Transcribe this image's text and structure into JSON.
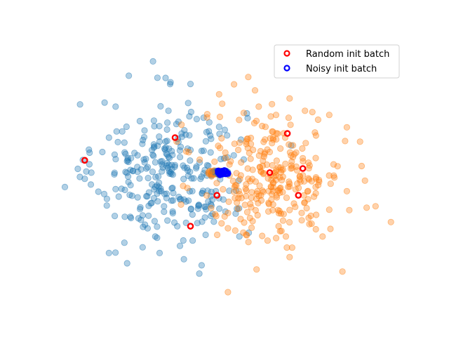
{
  "chart_data": {
    "type": "scatter",
    "title": "",
    "xlabel": "",
    "ylabel": "",
    "axes_visible": false,
    "grid": false,
    "xlim": [
      -3.6,
      4.3
    ],
    "ylim": [
      -3.0,
      3.2
    ],
    "legend": {
      "placement": "upper-right",
      "entries": [
        {
          "label": "Random init batch",
          "marker": "hollow-circle",
          "color": "#ff0000"
        },
        {
          "label": "Noisy init batch",
          "marker": "hollow-circle",
          "color": "#0000ff"
        }
      ]
    },
    "series": [
      {
        "role": "cluster-left",
        "color": "#1f77b4",
        "alpha": 0.35,
        "center": [
          -1.0,
          0.0
        ],
        "std": 0.85,
        "count": 300,
        "points": [
          [
            -1.4,
            2.7
          ],
          [
            -1.95,
            2.35
          ],
          [
            -1.3,
            2.3
          ],
          [
            -0.55,
            2.15
          ],
          [
            -2.5,
            1.7
          ],
          [
            -2.25,
            1.6
          ],
          [
            -1.05,
            1.5
          ],
          [
            -1.7,
            1.25
          ],
          [
            -2.1,
            1.0
          ],
          [
            -2.4,
            0.85
          ],
          [
            -0.75,
            0.95
          ],
          [
            -0.1,
            0.9
          ],
          [
            -1.25,
            0.75
          ],
          [
            -0.55,
            0.55
          ],
          [
            -1.9,
            0.35
          ],
          [
            -2.55,
            0.5
          ],
          [
            -1.55,
            0.1
          ],
          [
            -2.8,
            0.0
          ],
          [
            -2.95,
            -0.15
          ],
          [
            -0.95,
            -0.05
          ],
          [
            -0.3,
            -0.1
          ],
          [
            -1.35,
            -0.35
          ],
          [
            -2.25,
            -0.4
          ],
          [
            -1.75,
            -0.6
          ],
          [
            -0.65,
            -0.7
          ],
          [
            -2.45,
            -0.8
          ],
          [
            -1.15,
            -0.95
          ],
          [
            -0.05,
            -1.0
          ],
          [
            -1.9,
            -1.1
          ],
          [
            -0.85,
            -1.3
          ],
          [
            -1.35,
            -1.55
          ],
          [
            -2.05,
            -1.7
          ],
          [
            -0.5,
            -1.65
          ],
          [
            -2.4,
            -1.95
          ],
          [
            -1.25,
            -1.95
          ],
          [
            -0.7,
            -2.1
          ],
          [
            -0.35,
            -2.45
          ]
        ]
      },
      {
        "role": "cluster-right",
        "color": "#ff7f0e",
        "alpha": 0.35,
        "center": [
          1.3,
          -0.1
        ],
        "std": 0.8,
        "count": 300,
        "points": [
          [
            0.1,
            1.9
          ],
          [
            1.7,
            1.8
          ],
          [
            2.05,
            1.5
          ],
          [
            1.0,
            1.6
          ],
          [
            2.6,
            1.4
          ],
          [
            3.0,
            1.1
          ],
          [
            0.9,
            1.2
          ],
          [
            1.6,
            0.85
          ],
          [
            2.3,
            0.9
          ],
          [
            0.45,
            0.7
          ],
          [
            3.3,
            0.75
          ],
          [
            1.25,
            0.5
          ],
          [
            2.0,
            0.35
          ],
          [
            2.7,
            0.2
          ],
          [
            0.75,
            0.1
          ],
          [
            1.55,
            -0.1
          ],
          [
            2.35,
            -0.3
          ],
          [
            3.0,
            -0.45
          ],
          [
            0.45,
            -0.35
          ],
          [
            1.05,
            -0.55
          ],
          [
            1.8,
            -0.75
          ],
          [
            2.6,
            -0.9
          ],
          [
            3.45,
            -0.85
          ],
          [
            0.8,
            -1.1
          ],
          [
            1.45,
            -1.3
          ],
          [
            2.15,
            -1.25
          ],
          [
            4.0,
            -1.2
          ],
          [
            0.3,
            -1.35
          ],
          [
            1.2,
            -1.65
          ],
          [
            2.45,
            -1.55
          ],
          [
            1.7,
            -2.05
          ],
          [
            0.95,
            -2.35
          ],
          [
            2.9,
            -2.4
          ],
          [
            0.3,
            -2.9
          ]
        ]
      },
      {
        "name": "Random init batch",
        "color": "#ff0000",
        "marker": "hollow",
        "points": [
          [
            -2.95,
            0.3
          ],
          [
            -0.9,
            0.85
          ],
          [
            1.65,
            0.95
          ],
          [
            -0.55,
            -1.3
          ],
          [
            0.05,
            -0.55
          ],
          [
            1.25,
            0.0
          ],
          [
            2.0,
            0.1
          ],
          [
            1.9,
            -0.55
          ]
        ]
      },
      {
        "name": "Noisy init batch",
        "color": "#0000ff",
        "marker": "hollow",
        "points": [
          [
            0.1,
            0.0
          ],
          [
            0.15,
            0.02
          ],
          [
            0.2,
            -0.02
          ],
          [
            0.12,
            -0.05
          ],
          [
            0.22,
            0.05
          ],
          [
            0.18,
            0.0
          ],
          [
            0.08,
            0.04
          ],
          [
            0.25,
            -0.03
          ]
        ]
      }
    ]
  }
}
